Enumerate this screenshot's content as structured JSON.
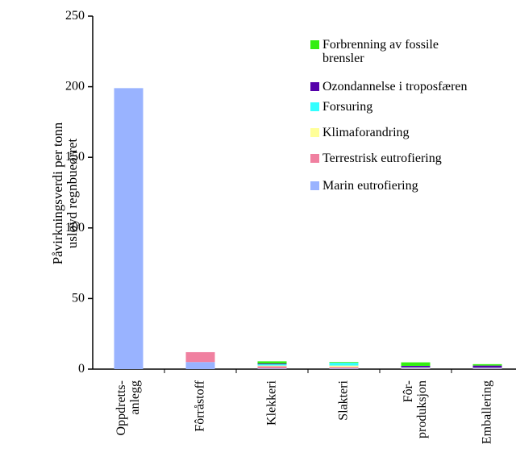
{
  "chart_data": {
    "type": "stacked_bar",
    "ylabel": "Påvirkningsverdi per tonn\nusløyd regnbueørret",
    "categories": [
      "Oppdretts-\nanlegg",
      "Fôrråstoff",
      "Klekkeri",
      "Slakteri",
      "Fôr-\nproduksjon",
      "Emballering"
    ],
    "series": [
      {
        "name": "Marin eutrofiering",
        "color": "#99b3ff",
        "values": [
          199,
          5,
          0.5,
          0.5,
          0.3,
          0.3
        ]
      },
      {
        "name": "Terrestrisk eutrofiering",
        "color": "#f080a0",
        "values": [
          0,
          7,
          1.5,
          1,
          0.5,
          0.3
        ]
      },
      {
        "name": "Klimaforandring",
        "color": "#ffff99",
        "values": [
          0,
          0,
          0.5,
          1,
          0.2,
          0.2
        ]
      },
      {
        "name": "Forsuring",
        "color": "#33ffff",
        "values": [
          0,
          0,
          1,
          2,
          0.3,
          0.2
        ]
      },
      {
        "name": "Ozondannelse i troposfæren",
        "color": "#5500aa",
        "values": [
          0,
          0,
          0.5,
          0,
          1,
          1.5
        ]
      },
      {
        "name": "Forbrenning av fossile\nbrensler",
        "color": "#33ee11",
        "values": [
          0,
          0,
          1.5,
          0.5,
          2.5,
          1
        ]
      }
    ],
    "ylim": [
      0,
      250
    ],
    "yticks": [
      0,
      50,
      100,
      150,
      200,
      250
    ],
    "grid": false
  }
}
